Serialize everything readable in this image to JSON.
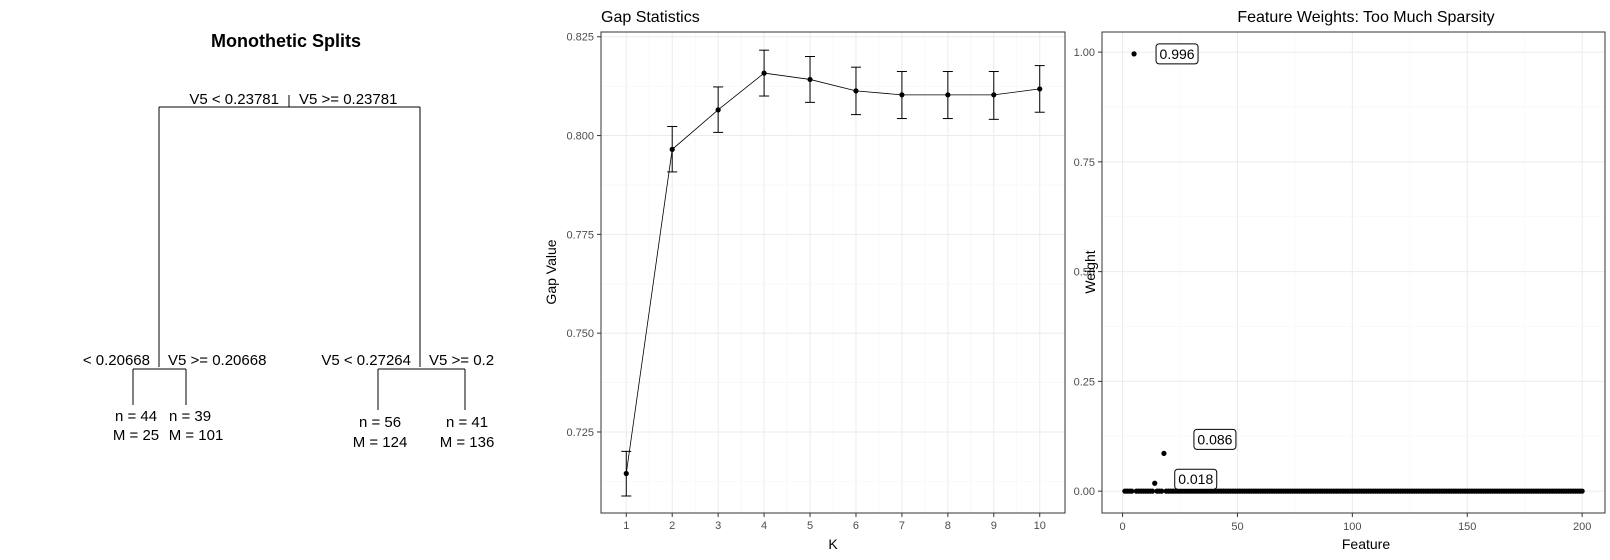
{
  "tree": {
    "title": "Monothetic Splits",
    "root_left_label": "V5 < 0.23781",
    "root_right_label": "V5 >= 0.23781",
    "left_left_label": "< 0.20668",
    "left_right_label": "V5 >= 0.20668",
    "right_left_label": "V5 < 0.27264",
    "right_right_label": "V5 >= 0.2",
    "leaves": [
      {
        "n": "n = 44",
        "m": "M = 25"
      },
      {
        "n": "n = 39",
        "m": "M = 101"
      },
      {
        "n": "n = 56",
        "m": "M = 124"
      },
      {
        "n": "n = 41",
        "m": "M = 136"
      }
    ]
  },
  "chart_data": [
    {
      "type": "line",
      "title": "Gap Statistics",
      "xlabel": "K",
      "ylabel": "Gap Value",
      "x": [
        1,
        2,
        3,
        4,
        5,
        6,
        7,
        8,
        9,
        10
      ],
      "y": [
        0.7145,
        0.7965,
        0.8065,
        0.8158,
        0.8142,
        0.8113,
        0.8103,
        0.8103,
        0.8103,
        0.8118
      ],
      "error_low": [
        0.7088,
        0.7908,
        0.8008,
        0.81,
        0.8084,
        0.8053,
        0.8043,
        0.8043,
        0.8041,
        0.8059
      ],
      "error_high": [
        0.7201,
        0.8023,
        0.8123,
        0.8216,
        0.82,
        0.8173,
        0.8162,
        0.8162,
        0.8162,
        0.8177
      ],
      "x_ticks": [
        "1",
        "2",
        "3",
        "4",
        "5",
        "6",
        "7",
        "8",
        "9",
        "10"
      ],
      "y_ticks": [
        "0.725",
        "0.750",
        "0.775",
        "0.800",
        "0.825"
      ],
      "xlim": [
        0.45,
        10.55
      ],
      "ylim": [
        0.7045,
        0.8262
      ],
      "grid": true
    },
    {
      "type": "scatter",
      "title": "Feature Weights: Too Much Sparsity",
      "xlabel": "Feature",
      "ylabel": "Weight",
      "x_ticks": [
        "0",
        "50",
        "100",
        "150",
        "200"
      ],
      "y_ticks": [
        "0.00",
        "0.25",
        "0.50",
        "0.75",
        "1.00"
      ],
      "xlim": [
        -8.95,
        209.95
      ],
      "ylim": [
        -0.0498,
        1.0458
      ],
      "points": [
        {
          "x": 5,
          "y": 0.996
        },
        {
          "x": 14,
          "y": 0.018
        },
        {
          "x": 18,
          "y": 0.086
        }
      ],
      "zero_range": [
        1,
        200
      ],
      "annotations": [
        {
          "x": 5,
          "y": 0.996,
          "text": "0.996"
        },
        {
          "x": 18,
          "y": 0.086,
          "text": "0.086"
        },
        {
          "x": 14,
          "y": 0.018,
          "text": "0.018"
        }
      ],
      "grid": true
    }
  ]
}
